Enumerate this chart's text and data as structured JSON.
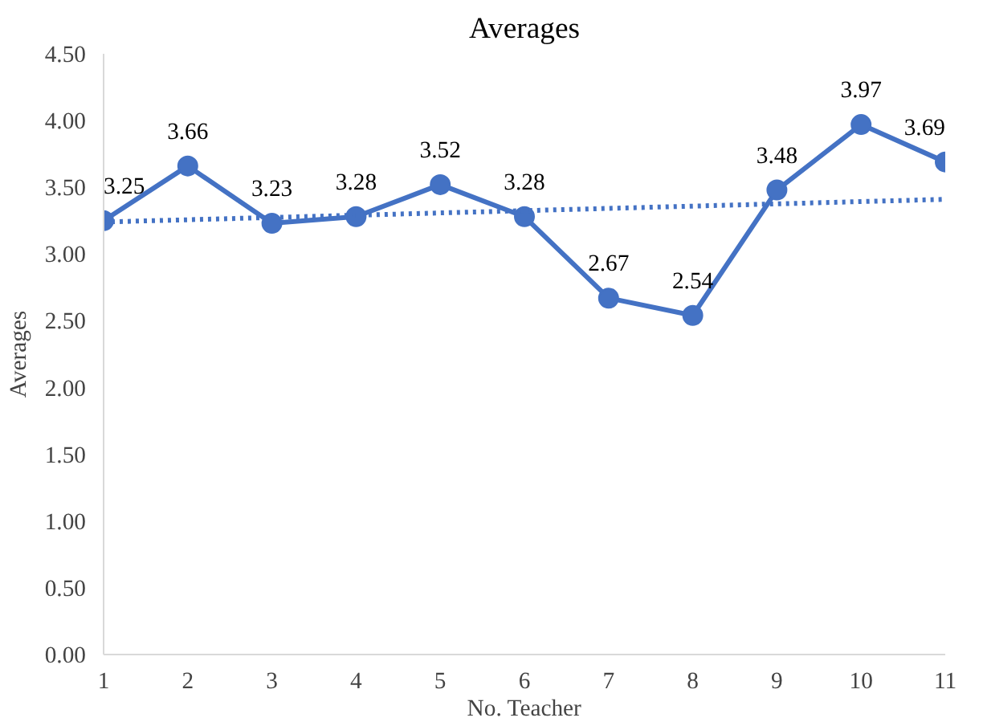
{
  "chart_data": {
    "type": "line",
    "title": "Averages",
    "xlabel": "No. Teacher",
    "ylabel": "Averages",
    "x": [
      1,
      2,
      3,
      4,
      5,
      6,
      7,
      8,
      9,
      10,
      11
    ],
    "xlim": [
      1,
      11
    ],
    "xticks": [
      1,
      2,
      3,
      4,
      5,
      6,
      7,
      8,
      9,
      10,
      11
    ],
    "ylim": [
      0,
      4.5
    ],
    "yticks": [
      {
        "value": 0,
        "label": "0.00"
      },
      {
        "value": 0.5,
        "label": "0.50"
      },
      {
        "value": 1,
        "label": "1.00"
      },
      {
        "value": 1.5,
        "label": "1.50"
      },
      {
        "value": 2,
        "label": "2.00"
      },
      {
        "value": 2.5,
        "label": "2.50"
      },
      {
        "value": 3,
        "label": "3.00"
      },
      {
        "value": 3.5,
        "label": "3.50"
      },
      {
        "value": 4,
        "label": "4.00"
      },
      {
        "value": 4.5,
        "label": "4.50"
      }
    ],
    "grid": false,
    "series": [
      {
        "color": "#4472c4",
        "marker": "circle",
        "line_style": "solid",
        "data_labels": true,
        "values": [
          3.25,
          3.66,
          3.23,
          3.28,
          3.52,
          3.28,
          2.67,
          2.54,
          3.48,
          3.97,
          3.69
        ]
      },
      {
        "type": "line",
        "color": "#4472c4",
        "marker": "none",
        "line_style": "dotted",
        "x": [
          1,
          11
        ],
        "values": [
          3.24,
          3.41
        ]
      }
    ]
  }
}
